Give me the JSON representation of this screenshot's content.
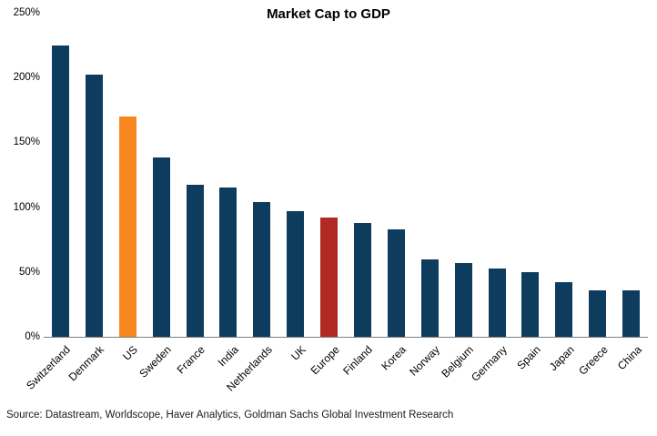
{
  "title": "Market Cap to GDP",
  "source": "Source: Datastream, Worldscope, Haver Analytics, Goldman Sachs Global Investment Research",
  "chart_data": {
    "type": "bar",
    "title": "Market Cap to GDP",
    "categories": [
      "Switzerland",
      "Denmark",
      "US",
      "Sweden",
      "France",
      "India",
      "Netherlands",
      "UK",
      "Europe",
      "Finland",
      "Korea",
      "Norway",
      "Belgium",
      "Germany",
      "Spain",
      "Japan",
      "Greece",
      "China"
    ],
    "values": [
      225,
      202,
      170,
      138,
      117,
      115,
      104,
      97,
      92,
      88,
      83,
      60,
      57,
      53,
      50,
      42,
      36,
      36
    ],
    "unit": "%",
    "ylim": [
      0,
      250
    ],
    "yticks": [
      0,
      50,
      100,
      150,
      200,
      250
    ],
    "ytick_labels": [
      "0%",
      "50%",
      "100%",
      "150%",
      "200%",
      "250%"
    ],
    "xlabel": "",
    "ylabel": "",
    "grid": false,
    "legend": false,
    "bar_color_default": "#0e3c5f",
    "highlights": {
      "US": "#f6871f",
      "Europe": "#b02a23"
    }
  }
}
